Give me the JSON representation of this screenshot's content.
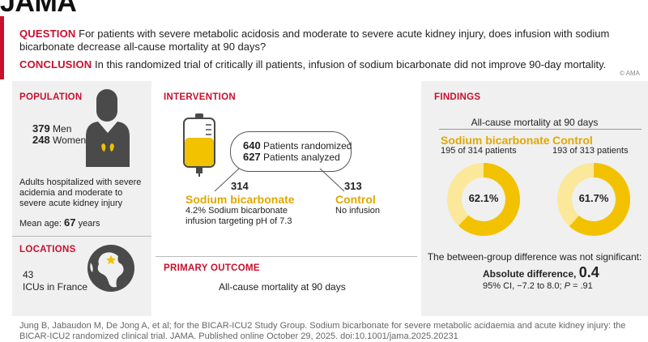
{
  "journal": "JAMA",
  "question": {
    "label": "QUESTION",
    "text": "For patients with severe metabolic acidosis and moderate to severe acute kidney injury, does infusion with sodium bicarbonate decrease all-cause mortality at 90 days?"
  },
  "conclusion": {
    "label": "CONCLUSION",
    "text": "In this randomized trial of critically ill patients, infusion of sodium bicarbonate did not improve 90-day mortality."
  },
  "copyright": "© AMA",
  "population": {
    "title": "POPULATION",
    "men_count": "379",
    "men_label": "Men",
    "women_count": "248",
    "women_label": "Women",
    "description": "Adults hospitalized with severe acidemia and moderate to severe acute kidney injury",
    "mean_age_label": "Mean age:",
    "mean_age_value": "67",
    "mean_age_unit": "years"
  },
  "locations": {
    "title": "LOCATIONS",
    "count": "43",
    "text": "ICUs in France"
  },
  "intervention": {
    "title": "INTERVENTION",
    "randomized_count": "640",
    "randomized_label": "Patients randomized",
    "analyzed_count": "627",
    "analyzed_label": "Patients analyzed",
    "arm1_count": "314",
    "arm1_name": "Sodium bicarbonate",
    "arm1_desc": "4.2% Sodium bicarbonate infusion targeting pH of 7.3",
    "arm2_count": "313",
    "arm2_name": "Control",
    "arm2_desc": "No infusion"
  },
  "primary_outcome": {
    "title": "PRIMARY OUTCOME",
    "text": "All-cause mortality at 90 days"
  },
  "findings": {
    "title": "FINDINGS",
    "subtitle": "All-cause mortality at 90 days",
    "arm1_name": "Sodium bicarbonate",
    "arm1_detail": "195 of 314 patients",
    "arm1_pct_label": "62.1%",
    "arm1_pct": 62.1,
    "arm2_name": "Control",
    "arm2_detail": "193 of 313 patients",
    "arm2_pct_label": "61.7%",
    "arm2_pct": 61.7,
    "difference_note": "The between-group difference was not significant:",
    "abs_diff_label": "Absolute difference,",
    "abs_diff_value": "0.4",
    "ci_text": "95% CI, −7.2 to 8.0;",
    "p_label": "P",
    "p_value": "= .91"
  },
  "citation": "Jung B, Jabaudon M, De Jong A, et al; for the BICAR-ICU2 Study Group. Sodium bicarbonate for severe metabolic acidaemia and acute kidney injury: the BICAR-ICU2 randomized clinical trial. JAMA. Published online October 29, 2025. doi:10.1001/jama.2025.20231",
  "colors": {
    "red": "#c8102e",
    "gold": "#f2c200",
    "donut_track": "#fbe89a",
    "panel": "#f0f0f0"
  }
}
